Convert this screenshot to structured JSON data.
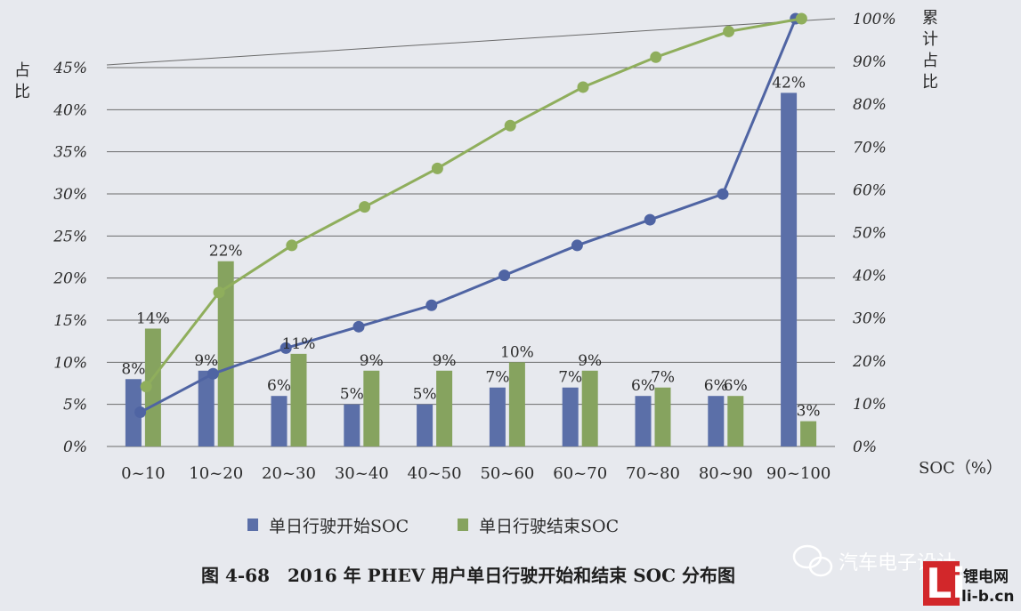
{
  "chart_data": {
    "type": "bar",
    "categories": [
      "0~10",
      "10~20",
      "20~30",
      "30~40",
      "40~50",
      "50~60",
      "60~70",
      "70~80",
      "80~90",
      "90~100"
    ],
    "series": [
      {
        "name": "单日行驶开始SOC",
        "values": [
          8,
          9,
          6,
          5,
          5,
          7,
          7,
          6,
          6,
          42
        ],
        "labels": [
          "8%",
          "9%",
          "6%",
          "5%",
          "5%",
          "7%",
          "7%",
          "6%",
          "6%",
          "42%"
        ],
        "color": "#5b6fa8"
      },
      {
        "name": "单日行驶结束SOC",
        "values": [
          14,
          22,
          11,
          9,
          9,
          10,
          9,
          7,
          6,
          3
        ],
        "labels": [
          "14%",
          "22%",
          "11%",
          "9%",
          "9%",
          "10%",
          "9%",
          "7%",
          "6%",
          "3%"
        ],
        "color": "#86a35f"
      }
    ],
    "cumulative_series": [
      {
        "of": "单日行驶开始SOC",
        "values": [
          8,
          17,
          23,
          28,
          33,
          40,
          47,
          53,
          59,
          100
        ],
        "color": "#4f64a3"
      },
      {
        "of": "单日行驶结束SOC",
        "values": [
          14,
          36,
          47,
          56,
          65,
          75,
          84,
          91,
          97,
          100
        ],
        "color": "#8fae5c"
      }
    ],
    "ylabel": "占比",
    "y2label": "累计占比",
    "xlabel": "SOC（%）",
    "ylim": [
      0,
      45
    ],
    "y2lim": [
      0,
      100
    ],
    "yticks": [
      "0%",
      "5%",
      "10%",
      "15%",
      "20%",
      "25%",
      "30%",
      "35%",
      "40%",
      "45%"
    ],
    "y2ticks": [
      "0%",
      "10%",
      "20%",
      "30%",
      "40%",
      "50%",
      "60%",
      "70%",
      "80%",
      "90%",
      "100%"
    ],
    "grid": true,
    "legend_position": "bottom",
    "caption": "图 4-68　2016 年 PHEV 用户单日行驶开始和结束 SOC 分布图"
  },
  "watermark": {
    "text": "汽车电子设计",
    "logo_letters": "Li",
    "logo_name": "锂电网",
    "logo_url": "li-b.cn"
  }
}
